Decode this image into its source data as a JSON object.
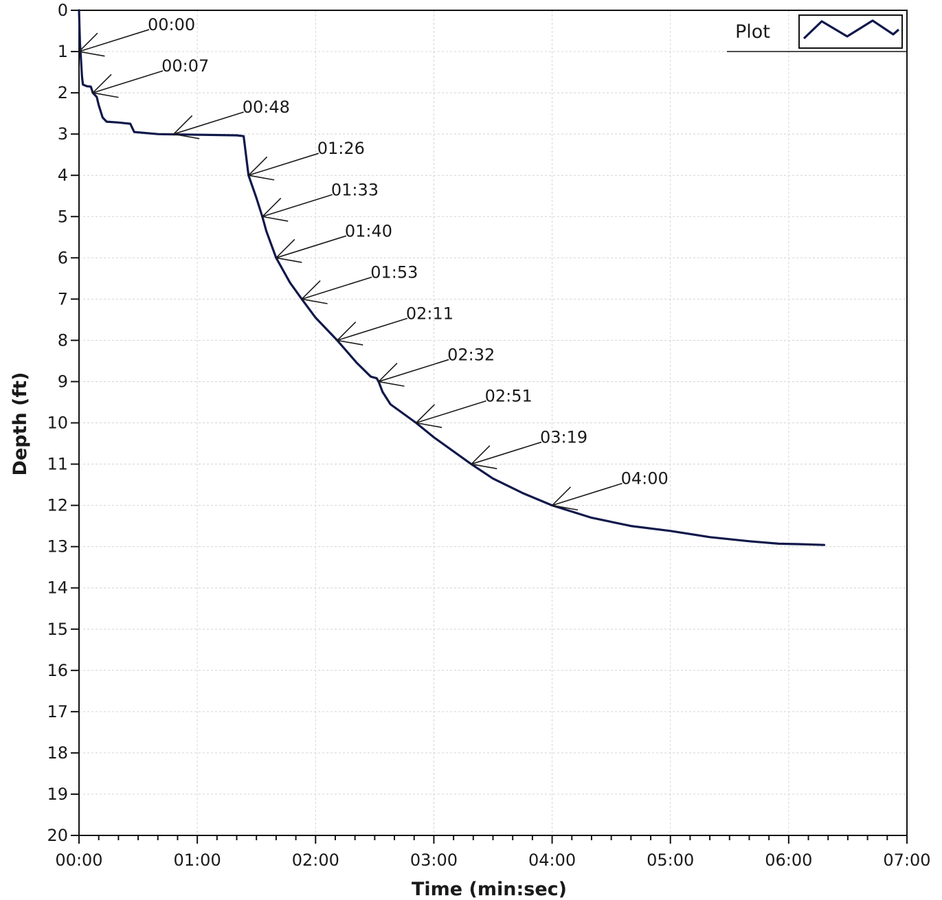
{
  "chart_data": {
    "type": "line",
    "title": "",
    "xlabel": "Time (min:sec)",
    "ylabel": "Depth (ft)",
    "x_unit": "seconds",
    "xlim": [
      0,
      420
    ],
    "ylim": [
      0,
      20
    ],
    "y_inverted": true,
    "x_ticks": [
      {
        "value": 0,
        "label": "00:00"
      },
      {
        "value": 60,
        "label": "01:00"
      },
      {
        "value": 120,
        "label": "02:00"
      },
      {
        "value": 180,
        "label": "03:00"
      },
      {
        "value": 240,
        "label": "04:00"
      },
      {
        "value": 300,
        "label": "05:00"
      },
      {
        "value": 360,
        "label": "06:00"
      },
      {
        "value": 420,
        "label": "07:00"
      }
    ],
    "x_minor_step": 10,
    "y_ticks": [
      0,
      1,
      2,
      3,
      4,
      5,
      6,
      7,
      8,
      9,
      10,
      11,
      12,
      13,
      14,
      15,
      16,
      17,
      18,
      19,
      20
    ],
    "grid": true,
    "legend": {
      "position": "top-right",
      "label": "Plot"
    },
    "series": [
      {
        "name": "Plot",
        "color": "#10184a",
        "points": [
          [
            0,
            0
          ],
          [
            0.5,
            0.8
          ],
          [
            1,
            1.2
          ],
          [
            1.5,
            1.6
          ],
          [
            2,
            1.8
          ],
          [
            4,
            1.84
          ],
          [
            6,
            1.85
          ],
          [
            7,
            2.0
          ],
          [
            9,
            2.1
          ],
          [
            10,
            2.3
          ],
          [
            12,
            2.6
          ],
          [
            14,
            2.7
          ],
          [
            20,
            2.72
          ],
          [
            26,
            2.75
          ],
          [
            28,
            2.95
          ],
          [
            40,
            3.0
          ],
          [
            80,
            3.03
          ],
          [
            83.5,
            3.05
          ],
          [
            86,
            4.0
          ],
          [
            90,
            4.55
          ],
          [
            93,
            5.0
          ],
          [
            95,
            5.35
          ],
          [
            100,
            6.0
          ],
          [
            107,
            6.6
          ],
          [
            113,
            7.0
          ],
          [
            120,
            7.45
          ],
          [
            131,
            8.0
          ],
          [
            141,
            8.55
          ],
          [
            148,
            8.88
          ],
          [
            151,
            8.92
          ],
          [
            152,
            9.0
          ],
          [
            154,
            9.25
          ],
          [
            158,
            9.55
          ],
          [
            171,
            10.0
          ],
          [
            180,
            10.35
          ],
          [
            199,
            11.0
          ],
          [
            210,
            11.35
          ],
          [
            225,
            11.7
          ],
          [
            240,
            12.0
          ],
          [
            260,
            12.3
          ],
          [
            280,
            12.5
          ],
          [
            300,
            12.62
          ],
          [
            320,
            12.77
          ],
          [
            340,
            12.87
          ],
          [
            355,
            12.93
          ],
          [
            365,
            12.94
          ],
          [
            378,
            12.96
          ]
        ]
      }
    ],
    "annotations": [
      {
        "label": "00:00",
        "x": 0,
        "y": 1
      },
      {
        "label": "00:07",
        "x": 7,
        "y": 2
      },
      {
        "label": "00:48",
        "x": 48,
        "y": 3
      },
      {
        "label": "01:26",
        "x": 86,
        "y": 4
      },
      {
        "label": "01:33",
        "x": 93,
        "y": 5
      },
      {
        "label": "01:40",
        "x": 100,
        "y": 6
      },
      {
        "label": "01:53",
        "x": 113,
        "y": 7
      },
      {
        "label": "02:11",
        "x": 131,
        "y": 8
      },
      {
        "label": "02:32",
        "x": 152,
        "y": 9
      },
      {
        "label": "02:51",
        "x": 171,
        "y": 10
      },
      {
        "label": "03:19",
        "x": 199,
        "y": 11
      },
      {
        "label": "04:00",
        "x": 240,
        "y": 12
      }
    ]
  }
}
